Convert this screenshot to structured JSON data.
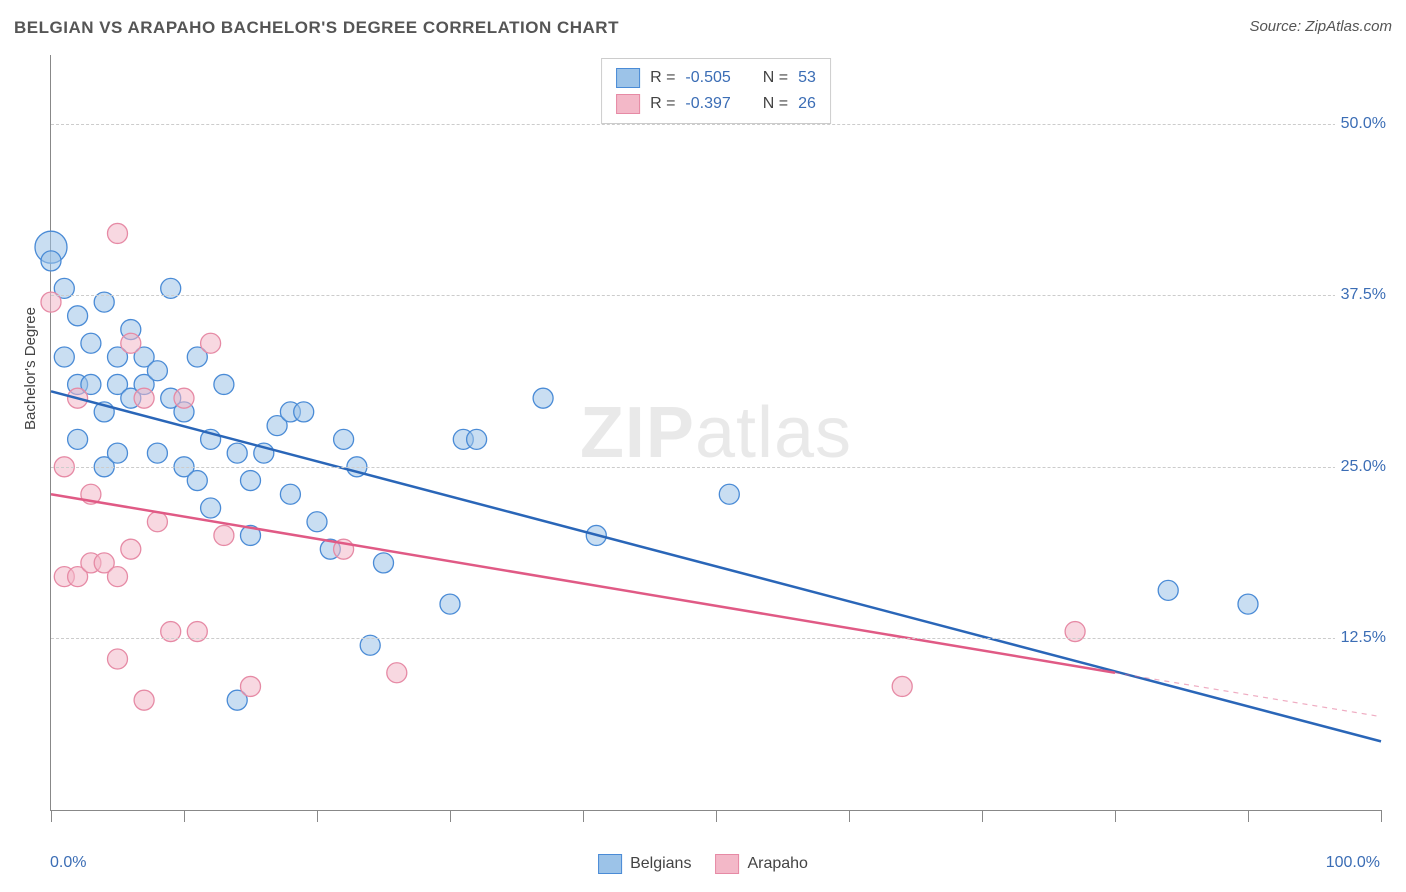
{
  "title": "BELGIAN VS ARAPAHO BACHELOR'S DEGREE CORRELATION CHART",
  "source": "Source: ZipAtlas.com",
  "ylabel": "Bachelor's Degree",
  "watermark_bold": "ZIP",
  "watermark_rest": "atlas",
  "chart": {
    "type": "scatter",
    "xlim": [
      0,
      100
    ],
    "ylim": [
      0,
      55
    ],
    "y_gridlines": [
      50,
      37.5,
      25,
      12.5
    ],
    "y_gridlabels": [
      "50.0%",
      "37.5%",
      "25.0%",
      "12.5%"
    ],
    "x_ticks": [
      0,
      10,
      20,
      30,
      40,
      50,
      60,
      70,
      80,
      90,
      100
    ],
    "xlab_left": "0.0%",
    "xlab_right": "100.0%",
    "background_color": "#ffffff",
    "grid_color": "#cccccc",
    "axis_color": "#888888",
    "tick_label_color": "#3b6db5",
    "series": [
      {
        "name": "Belgians",
        "marker_fill": "#9cc3e8",
        "marker_fill_opacity": 0.55,
        "marker_stroke": "#4a8bd6",
        "marker_radius": 10,
        "line_color": "#2a66b8",
        "line_width": 2.5,
        "R": "-0.505",
        "N": "53",
        "trend": {
          "x1": 0,
          "y1": 30.5,
          "x2": 100,
          "y2": 5.0
        },
        "trend_ext": null,
        "points": [
          {
            "x": 0,
            "y": 41,
            "r": 16
          },
          {
            "x": 0,
            "y": 40,
            "r": 10
          },
          {
            "x": 1,
            "y": 38
          },
          {
            "x": 1,
            "y": 33
          },
          {
            "x": 2,
            "y": 36
          },
          {
            "x": 2,
            "y": 31
          },
          {
            "x": 2,
            "y": 27
          },
          {
            "x": 3,
            "y": 31
          },
          {
            "x": 3,
            "y": 34
          },
          {
            "x": 4,
            "y": 37
          },
          {
            "x": 4,
            "y": 29
          },
          {
            "x": 4,
            "y": 25
          },
          {
            "x": 5,
            "y": 33
          },
          {
            "x": 5,
            "y": 31
          },
          {
            "x": 5,
            "y": 26
          },
          {
            "x": 6,
            "y": 35
          },
          {
            "x": 6,
            "y": 30
          },
          {
            "x": 7,
            "y": 31
          },
          {
            "x": 7,
            "y": 33
          },
          {
            "x": 8,
            "y": 32
          },
          {
            "x": 8,
            "y": 26
          },
          {
            "x": 9,
            "y": 38
          },
          {
            "x": 9,
            "y": 30
          },
          {
            "x": 10,
            "y": 29
          },
          {
            "x": 10,
            "y": 25
          },
          {
            "x": 11,
            "y": 24
          },
          {
            "x": 11,
            "y": 33
          },
          {
            "x": 12,
            "y": 27
          },
          {
            "x": 12,
            "y": 22
          },
          {
            "x": 13,
            "y": 31
          },
          {
            "x": 14,
            "y": 26
          },
          {
            "x": 14,
            "y": 8
          },
          {
            "x": 15,
            "y": 24
          },
          {
            "x": 15,
            "y": 20
          },
          {
            "x": 16,
            "y": 26
          },
          {
            "x": 17,
            "y": 28
          },
          {
            "x": 18,
            "y": 23
          },
          {
            "x": 18,
            "y": 29
          },
          {
            "x": 19,
            "y": 29
          },
          {
            "x": 20,
            "y": 21
          },
          {
            "x": 21,
            "y": 19
          },
          {
            "x": 22,
            "y": 27
          },
          {
            "x": 23,
            "y": 25
          },
          {
            "x": 24,
            "y": 12
          },
          {
            "x": 25,
            "y": 18
          },
          {
            "x": 30,
            "y": 15
          },
          {
            "x": 31,
            "y": 27
          },
          {
            "x": 32,
            "y": 27
          },
          {
            "x": 37,
            "y": 30
          },
          {
            "x": 41,
            "y": 20
          },
          {
            "x": 51,
            "y": 23
          },
          {
            "x": 84,
            "y": 16
          },
          {
            "x": 90,
            "y": 15
          }
        ]
      },
      {
        "name": "Arapaho",
        "marker_fill": "#f3b8c8",
        "marker_fill_opacity": 0.55,
        "marker_stroke": "#e68aa5",
        "marker_radius": 10,
        "line_color": "#e05a85",
        "line_width": 2.5,
        "R": "-0.397",
        "N": "26",
        "trend": {
          "x1": 0,
          "y1": 23.0,
          "x2": 80,
          "y2": 10.0
        },
        "trend_ext": {
          "x1": 80,
          "y1": 10.0,
          "x2": 100,
          "y2": 6.8
        },
        "points": [
          {
            "x": 0,
            "y": 37
          },
          {
            "x": 1,
            "y": 25
          },
          {
            "x": 1,
            "y": 17
          },
          {
            "x": 2,
            "y": 30
          },
          {
            "x": 2,
            "y": 17
          },
          {
            "x": 3,
            "y": 23
          },
          {
            "x": 3,
            "y": 18
          },
          {
            "x": 4,
            "y": 18
          },
          {
            "x": 5,
            "y": 42
          },
          {
            "x": 5,
            "y": 17
          },
          {
            "x": 5,
            "y": 11
          },
          {
            "x": 6,
            "y": 34
          },
          {
            "x": 6,
            "y": 19
          },
          {
            "x": 7,
            "y": 30
          },
          {
            "x": 7,
            "y": 8
          },
          {
            "x": 8,
            "y": 21
          },
          {
            "x": 9,
            "y": 13
          },
          {
            "x": 10,
            "y": 30
          },
          {
            "x": 11,
            "y": 13
          },
          {
            "x": 12,
            "y": 34
          },
          {
            "x": 13,
            "y": 20
          },
          {
            "x": 15,
            "y": 9
          },
          {
            "x": 22,
            "y": 19
          },
          {
            "x": 26,
            "y": 10
          },
          {
            "x": 64,
            "y": 9
          },
          {
            "x": 77,
            "y": 13
          }
        ]
      }
    ],
    "legend_top": {
      "r_label": "R =",
      "n_label": "N ="
    },
    "legend_bottom": [
      {
        "label": "Belgians",
        "fill": "#9cc3e8",
        "stroke": "#4a8bd6"
      },
      {
        "label": "Arapaho",
        "fill": "#f3b8c8",
        "stroke": "#e68aa5"
      }
    ]
  }
}
